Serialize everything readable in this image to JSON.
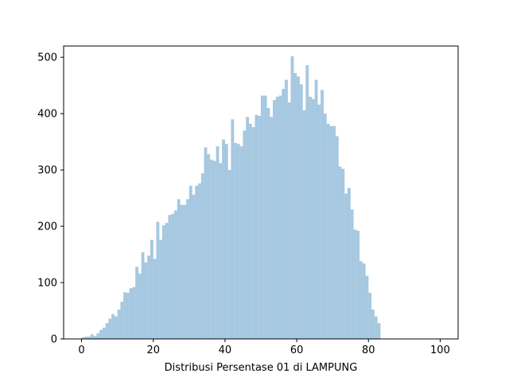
{
  "chart_data": {
    "type": "bar",
    "title": "",
    "xlabel": "Distribusi Persentase 01 di LAMPUNG",
    "ylabel": "",
    "xlim": [
      -5,
      105
    ],
    "ylim": [
      0,
      520
    ],
    "x_ticks": [
      0,
      20,
      40,
      60,
      80,
      100
    ],
    "y_ticks": [
      0,
      100,
      200,
      300,
      400,
      500
    ],
    "grid": false,
    "bar_color": "#a6c8e0",
    "bin_start": 0,
    "bin_width": 0.8333,
    "values": [
      3,
      4,
      4,
      8,
      5,
      10,
      16,
      20,
      28,
      36,
      44,
      40,
      52,
      66,
      83,
      82,
      90,
      92,
      128,
      116,
      154,
      136,
      148,
      176,
      142,
      208,
      176,
      202,
      206,
      220,
      222,
      228,
      248,
      238,
      238,
      248,
      272,
      256,
      272,
      276,
      294,
      340,
      328,
      318,
      316,
      342,
      312,
      354,
      346,
      300,
      390,
      348,
      346,
      342,
      370,
      394,
      382,
      376,
      398,
      396,
      432,
      432,
      410,
      394,
      424,
      430,
      432,
      444,
      460,
      420,
      502,
      472,
      466,
      452,
      406,
      486,
      430,
      426,
      460,
      416,
      442,
      400,
      382,
      378,
      378,
      360,
      306,
      302,
      258,
      268,
      230,
      194,
      192,
      138,
      134,
      112,
      82,
      52,
      40,
      28
    ]
  }
}
